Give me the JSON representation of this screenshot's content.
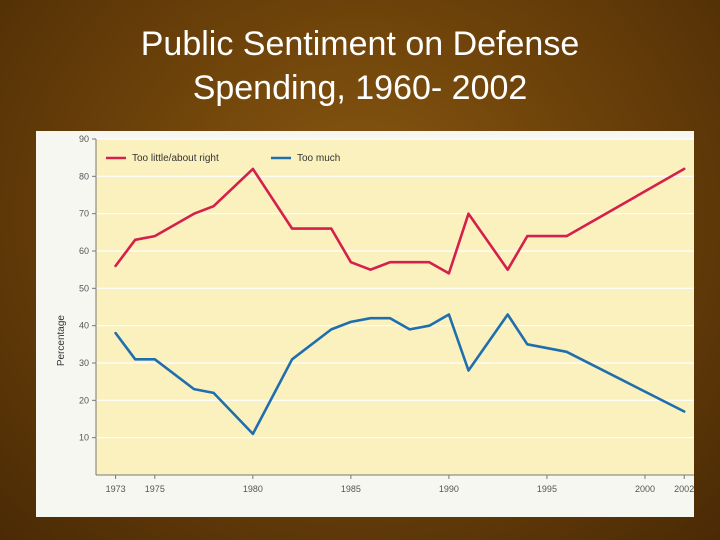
{
  "slide": {
    "title_line1": "Public Sentiment on Defense",
    "title_line2": "Spending, 1960- 2002"
  },
  "colors": {
    "series_a": "#d4204a",
    "series_b": "#1f6eae",
    "plot_bg": "#fbf1be",
    "grid": "#ffffff"
  },
  "chart_data": {
    "type": "line",
    "title": "Public Sentiment on Defense Spending, 1960- 2002",
    "xlabel": "",
    "ylabel": "Percentage",
    "xlim": [
      1972,
      2002.5
    ],
    "ylim": [
      0,
      90
    ],
    "yticks": [
      10,
      20,
      30,
      40,
      50,
      60,
      70,
      80,
      90
    ],
    "xticks": [
      1973,
      1975,
      1980,
      1985,
      1990,
      1995,
      2000,
      2002
    ],
    "legend_position": "top-left",
    "series": [
      {
        "name": "Too little/about right",
        "color": "#d4204a",
        "x": [
          1973,
          1974,
          1975,
          1977,
          1978,
          1980,
          1982,
          1984,
          1985,
          1986,
          1987,
          1988,
          1989,
          1990,
          1991,
          1993,
          1994,
          1996,
          2002
        ],
        "y": [
          56,
          63,
          64,
          70,
          72,
          82,
          66,
          66,
          57,
          55,
          57,
          57,
          57,
          54,
          70,
          55,
          64,
          64,
          82
        ]
      },
      {
        "name": "Too much",
        "color": "#1f6eae",
        "x": [
          1973,
          1974,
          1975,
          1977,
          1978,
          1980,
          1982,
          1984,
          1985,
          1986,
          1987,
          1988,
          1989,
          1990,
          1991,
          1993,
          1994,
          1996,
          2002
        ],
        "y": [
          38,
          31,
          31,
          23,
          22,
          11,
          31,
          39,
          41,
          42,
          42,
          39,
          40,
          43,
          28,
          43,
          35,
          33,
          17
        ]
      }
    ]
  }
}
